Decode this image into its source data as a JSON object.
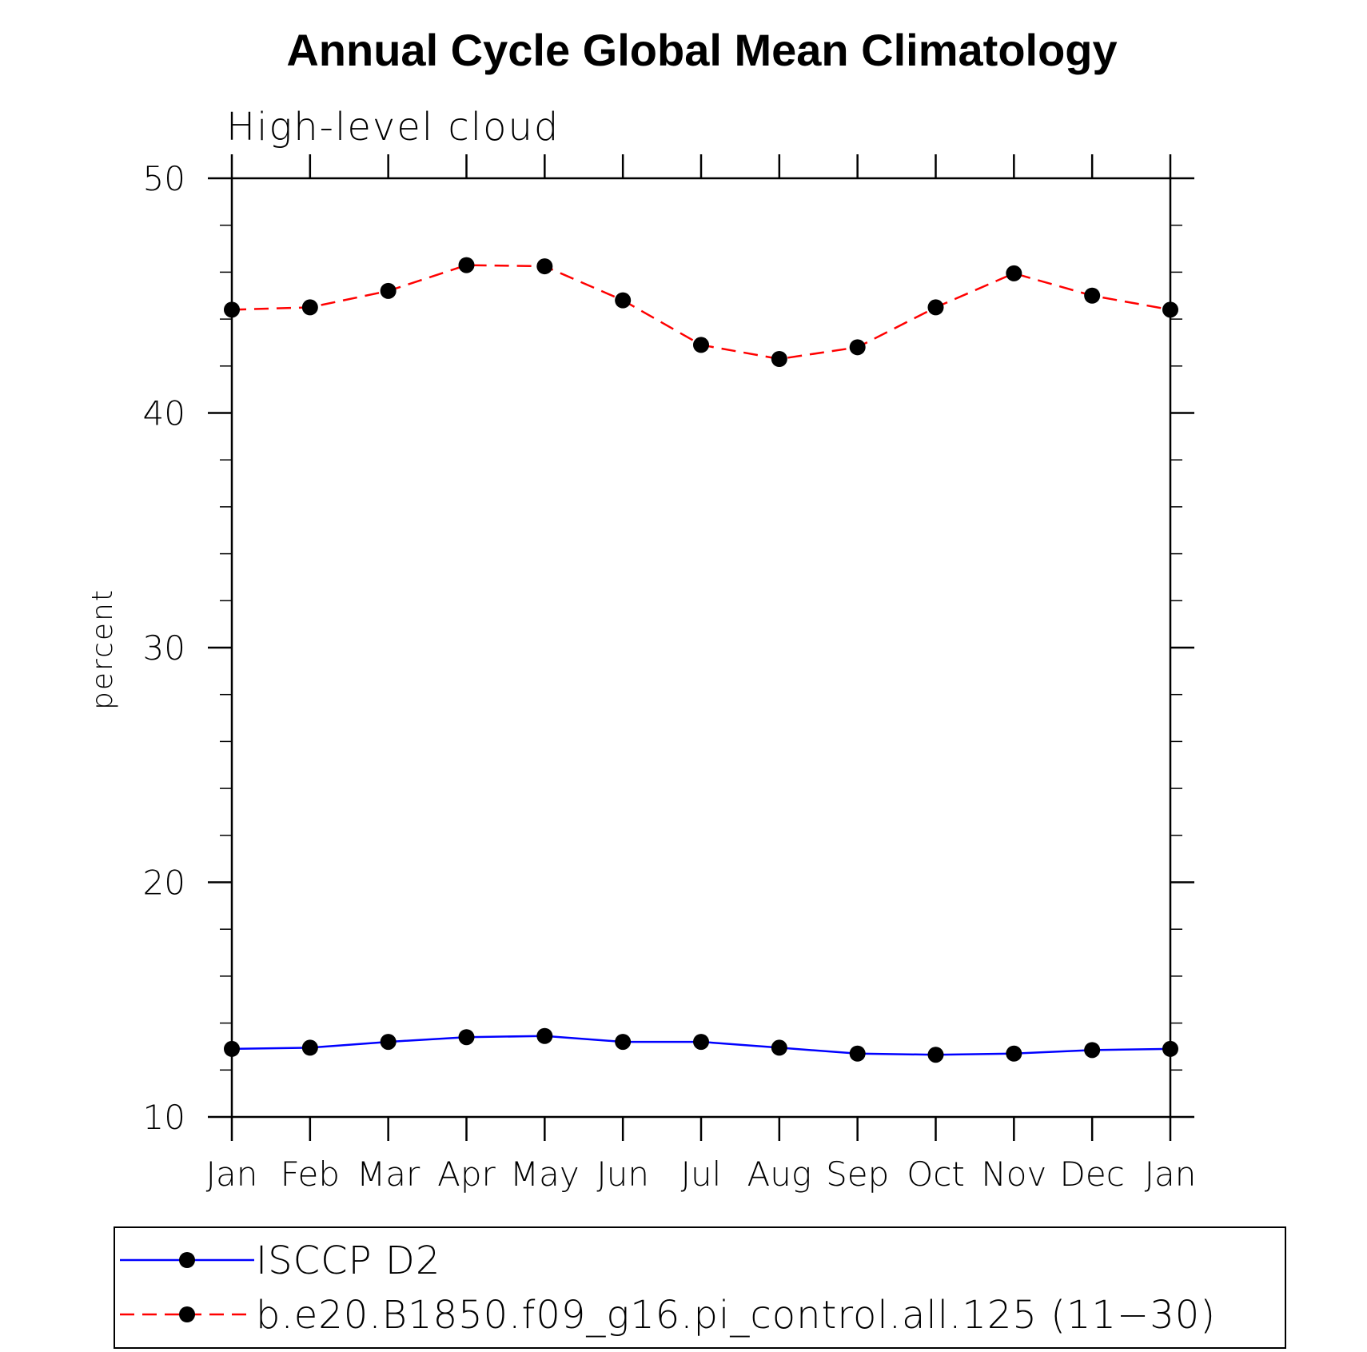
{
  "chart_data": {
    "type": "line",
    "title": "Annual Cycle Global Mean Climatology",
    "subtitle": "High-level cloud",
    "xlabel": "",
    "ylabel": "percent",
    "categories": [
      "Jan",
      "Feb",
      "Mar",
      "Apr",
      "May",
      "Jun",
      "Jul",
      "Aug",
      "Sep",
      "Oct",
      "Nov",
      "Dec",
      "Jan"
    ],
    "ylim": [
      10,
      50
    ],
    "yticks": [
      10,
      20,
      30,
      40,
      50
    ],
    "grid": false,
    "legend_position": "bottom",
    "series": [
      {
        "name": "ISCCP D2",
        "color": "#0000ff",
        "line_style": "solid",
        "marker": "filled-circle",
        "values": [
          12.9,
          12.95,
          13.2,
          13.4,
          13.45,
          13.2,
          13.2,
          12.95,
          12.7,
          12.65,
          12.7,
          12.85,
          12.9
        ]
      },
      {
        "name": "b.e20.B1850.f09_g16.pi_control.all.125 (11−30)",
        "color": "#ff0000",
        "line_style": "dashed",
        "marker": "filled-circle",
        "values": [
          44.4,
          44.5,
          45.2,
          46.3,
          46.25,
          44.8,
          42.9,
          42.3,
          42.8,
          44.5,
          45.95,
          45.0,
          44.4
        ]
      }
    ]
  }
}
